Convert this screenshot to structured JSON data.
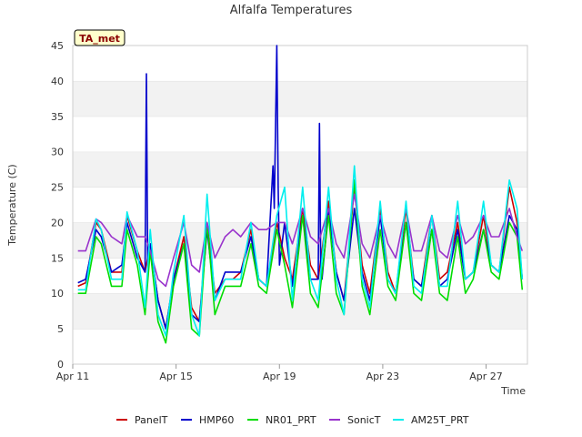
{
  "chart_data": {
    "type": "line",
    "title": "Alfalfa Temperatures",
    "badge": "TA_met",
    "xlabel": "Time",
    "ylabel": "Temperature (C)",
    "ylim": [
      0,
      45
    ],
    "xlim": [
      0,
      17.6
    ],
    "y_ticks": [
      0,
      5,
      10,
      15,
      20,
      25,
      30,
      35,
      40,
      45
    ],
    "x_ticks": [
      {
        "value": 0,
        "label": "Apr 11"
      },
      {
        "value": 4,
        "label": "Apr 15"
      },
      {
        "value": 8,
        "label": "Apr 19"
      },
      {
        "value": 12,
        "label": "Apr 23"
      },
      {
        "value": 16,
        "label": "Apr 27"
      }
    ],
    "grid": "horizontal alternating bands",
    "legend_position": "bottom",
    "series": [
      {
        "name": "PanelT",
        "color": "#cc0000",
        "x": [
          0.2,
          0.5,
          0.9,
          1.1,
          1.5,
          1.9,
          2.1,
          2.5,
          2.8,
          3.0,
          3.3,
          3.6,
          3.9,
          4.3,
          4.6,
          4.9,
          5.2,
          5.5,
          5.9,
          6.2,
          6.5,
          6.9,
          7.2,
          7.5,
          7.9,
          8.2,
          8.5,
          8.9,
          9.2,
          9.5,
          9.9,
          10.2,
          10.5,
          10.9,
          11.2,
          11.5,
          11.9,
          12.2,
          12.5,
          12.9,
          13.2,
          13.5,
          13.9,
          14.2,
          14.5,
          14.9,
          15.2,
          15.5,
          15.9,
          16.2,
          16.5,
          16.9,
          17.2,
          17.4
        ],
        "y": [
          11,
          11.5,
          20,
          19,
          13,
          13,
          21,
          16,
          13,
          17,
          9,
          5,
          12,
          18,
          8,
          6,
          20,
          10,
          12,
          12,
          13,
          19,
          12,
          11,
          20,
          15,
          12,
          22,
          14,
          12,
          23,
          13,
          9,
          25,
          14,
          10,
          22,
          13,
          10,
          22,
          12,
          11,
          21,
          12,
          13,
          20,
          12,
          13,
          21,
          14,
          13,
          25,
          20,
          12
        ]
      },
      {
        "name": "HMP60",
        "color": "#0000cc",
        "x": [
          0.2,
          0.5,
          0.9,
          1.1,
          1.5,
          1.9,
          2.1,
          2.5,
          2.8,
          2.85,
          2.9,
          3.0,
          3.3,
          3.6,
          3.9,
          4.3,
          4.6,
          4.9,
          5.2,
          5.5,
          5.9,
          6.2,
          6.5,
          6.9,
          7.2,
          7.5,
          7.75,
          7.8,
          7.9,
          7.95,
          8.0,
          8.2,
          8.5,
          8.9,
          9.2,
          9.5,
          9.55,
          9.6,
          9.65,
          9.9,
          10.2,
          10.5,
          10.9,
          11.2,
          11.5,
          11.9,
          12.2,
          12.5,
          12.9,
          13.2,
          13.5,
          13.9,
          14.2,
          14.5,
          14.9,
          15.2,
          15.5,
          15.9,
          16.2,
          16.5,
          16.9,
          17.2,
          17.4
        ],
        "y": [
          11.5,
          12,
          19,
          18,
          13,
          14,
          20,
          15,
          13,
          41,
          14,
          17,
          9,
          5,
          12,
          17,
          7,
          6,
          19,
          9,
          13,
          13,
          13,
          18,
          12,
          11,
          28,
          22,
          45,
          25,
          14,
          20,
          11,
          21,
          12,
          12,
          34,
          14,
          12,
          22,
          13,
          9,
          22,
          13,
          9,
          21,
          12,
          10,
          20,
          12,
          11,
          19,
          11,
          12,
          19,
          12,
          13,
          19,
          14,
          13,
          21,
          19,
          12
        ]
      },
      {
        "name": "NR01_PRT",
        "color": "#00dd00",
        "x": [
          0.2,
          0.5,
          0.9,
          1.1,
          1.5,
          1.9,
          2.1,
          2.5,
          2.8,
          3.0,
          3.3,
          3.6,
          3.9,
          4.3,
          4.6,
          4.9,
          5.2,
          5.5,
          5.9,
          6.2,
          6.5,
          6.9,
          7.2,
          7.5,
          7.9,
          8.2,
          8.5,
          8.9,
          9.2,
          9.5,
          9.9,
          10.2,
          10.5,
          10.9,
          11.2,
          11.5,
          11.9,
          12.2,
          12.5,
          12.9,
          13.2,
          13.5,
          13.9,
          14.2,
          14.5,
          14.9,
          15.2,
          15.5,
          15.9,
          16.2,
          16.5,
          16.9,
          17.2,
          17.4
        ],
        "y": [
          10,
          10,
          18,
          17,
          11,
          11,
          19,
          14,
          7,
          16,
          6,
          3,
          11,
          17,
          5,
          4,
          20,
          7,
          11,
          11,
          11,
          17,
          11,
          10,
          19,
          14,
          8,
          21,
          10,
          8,
          21,
          10,
          7,
          26,
          11,
          7,
          19,
          11,
          9,
          20,
          10,
          9,
          19,
          10,
          9,
          18,
          10,
          12,
          19,
          13,
          12,
          20,
          18,
          10.5
        ]
      },
      {
        "name": "SonicT",
        "color": "#9933cc",
        "x": [
          0.2,
          0.5,
          0.9,
          1.1,
          1.5,
          1.9,
          2.1,
          2.5,
          2.8,
          3.0,
          3.3,
          3.6,
          3.9,
          4.3,
          4.6,
          4.9,
          5.2,
          5.5,
          5.9,
          6.2,
          6.5,
          6.9,
          7.2,
          7.5,
          7.9,
          8.2,
          8.5,
          8.9,
          9.2,
          9.5,
          9.9,
          10.2,
          10.5,
          10.9,
          11.2,
          11.5,
          11.9,
          12.2,
          12.5,
          12.9,
          13.2,
          13.5,
          13.9,
          14.2,
          14.5,
          14.9,
          15.2,
          15.5,
          15.9,
          16.2,
          16.5,
          16.9,
          17.2,
          17.4
        ],
        "y": [
          16,
          16,
          20.5,
          20,
          18,
          17,
          21,
          18,
          18,
          16,
          12,
          11,
          15,
          20,
          14,
          13,
          20,
          15,
          18,
          19,
          18,
          20,
          19,
          19,
          20,
          20,
          17,
          22,
          18,
          17,
          22,
          17,
          15,
          24,
          17,
          15,
          21,
          17,
          15,
          22,
          16,
          16,
          21,
          16,
          15,
          21,
          17,
          18,
          21,
          18,
          18,
          22,
          18,
          16
        ]
      },
      {
        "name": "AM25T_PRT",
        "color": "#00eeee",
        "x": [
          0.2,
          0.5,
          0.9,
          1.1,
          1.5,
          1.9,
          2.1,
          2.5,
          2.8,
          3.0,
          3.3,
          3.6,
          3.9,
          4.3,
          4.6,
          4.9,
          5.2,
          5.5,
          5.9,
          6.2,
          6.5,
          6.9,
          7.2,
          7.5,
          7.9,
          8.2,
          8.5,
          8.9,
          9.2,
          9.5,
          9.9,
          10.2,
          10.5,
          10.9,
          11.2,
          11.5,
          11.9,
          12.2,
          12.5,
          12.9,
          13.2,
          13.5,
          13.9,
          14.2,
          14.5,
          14.9,
          15.2,
          15.5,
          15.9,
          16.2,
          16.5,
          16.9,
          17.2,
          17.4
        ],
        "y": [
          10.5,
          10.5,
          20.5,
          19,
          12,
          12,
          21.5,
          16,
          8,
          19,
          7,
          4,
          13,
          21,
          7,
          4,
          24,
          9,
          12,
          12,
          12,
          20,
          12,
          11,
          21,
          25,
          9,
          25,
          12,
          9,
          25,
          12,
          7,
          28,
          12,
          8,
          23,
          12,
          10,
          23,
          11,
          10,
          21,
          11,
          11,
          23,
          12,
          13,
          23,
          14,
          13,
          26,
          22,
          12
        ]
      }
    ]
  }
}
